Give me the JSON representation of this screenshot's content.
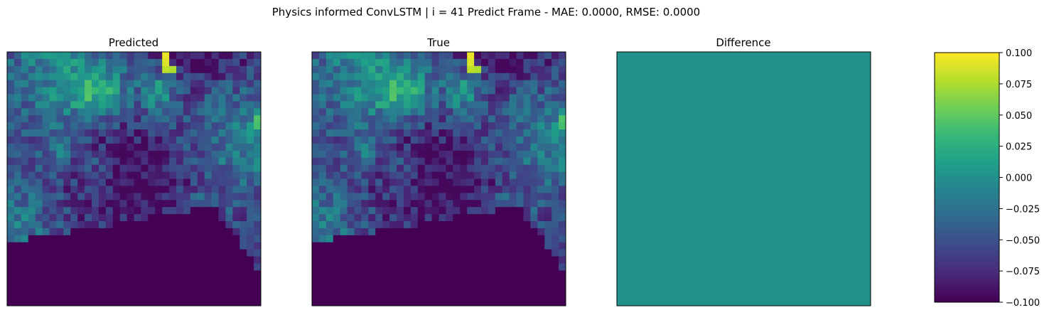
{
  "figure": {
    "suptitle": "Physics informed ConvLSTM | i = 41 Predict Frame - MAE: 0.0000, RMSE: 0.0000"
  },
  "chart_data": [
    {
      "type": "heatmap",
      "title": "Predicted",
      "grid_size": [
        36,
        36
      ],
      "colormap": "viridis",
      "value_range": [
        -0.1,
        0.1
      ],
      "axes_ticks": false,
      "values_note": "spatial field identical to the True panel"
    },
    {
      "type": "heatmap",
      "title": "True",
      "grid_size": [
        36,
        36
      ],
      "colormap": "viridis",
      "value_range": [
        -0.1,
        0.1
      ],
      "axes_ticks": false
    },
    {
      "type": "heatmap",
      "title": "Difference",
      "grid_size": [
        36,
        36
      ],
      "colormap": "viridis",
      "value_range": [
        -0.1,
        0.1
      ],
      "uniform_value": 0.0,
      "axes_ticks": false
    },
    {
      "type": "colorbar",
      "colormap": "viridis",
      "range": [
        -0.1,
        0.1
      ],
      "ticks": [
        "0.100",
        "0.075",
        "0.050",
        "0.025",
        "0.000",
        "−0.025",
        "−0.050",
        "−0.075",
        "−0.100"
      ]
    }
  ],
  "colors": {
    "viridis_stops": [
      "#440154",
      "#482878",
      "#3e4989",
      "#31688e",
      "#26828e",
      "#1f9e89",
      "#35b779",
      "#6ece58",
      "#b5de2b",
      "#fde725"
    ],
    "difference_fill": "#21918c"
  }
}
